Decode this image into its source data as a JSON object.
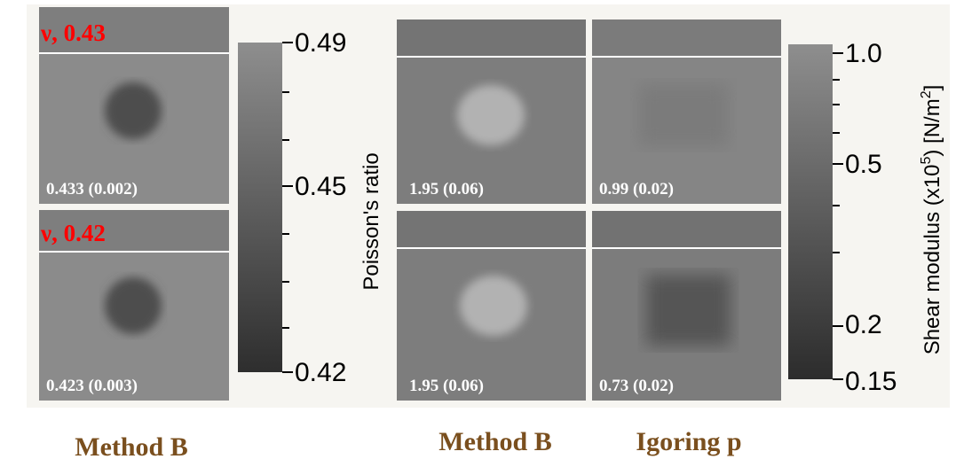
{
  "panels": [
    {
      "label": "ν, 0.43",
      "value": "0.433 (0.002)"
    },
    {
      "label": "ν, 0.42",
      "value": "0.423 (0.003)"
    },
    {
      "value": "1.95 (0.06)"
    },
    {
      "value": "0.99 (0.02)"
    },
    {
      "value": "1.95 (0.06)"
    },
    {
      "value": "0.73 (0.02)"
    }
  ],
  "colorbars": [
    {
      "label": [
        "Poisson's ratio"
      ],
      "ticks": [
        "0.49",
        "0.45",
        "0.42"
      ]
    },
    {
      "label": [
        "Shear modulus (x10",
        "5",
        ") [N/m",
        "2",
        "]"
      ],
      "ticks": [
        "1.0",
        "0.5",
        "0.2",
        "0.15"
      ]
    }
  ],
  "captions": [
    "Method B",
    "Method B",
    "Igoring p"
  ]
}
